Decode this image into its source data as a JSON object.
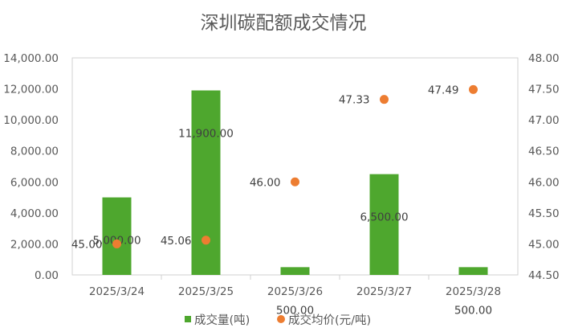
{
  "chart_data": {
    "type": "bar",
    "title": "深圳碳配额成交情况",
    "categories": [
      "2025/3/24",
      "2025/3/25",
      "2025/3/26",
      "2025/3/27",
      "2025/3/28"
    ],
    "series": [
      {
        "name": "成交量(吨)",
        "type": "bar",
        "axis": "left",
        "color": "#4ea72e",
        "values": [
          5000,
          11900,
          500,
          6500,
          500
        ],
        "labels": [
          "5,000.00",
          "11,900.00",
          "500.00",
          "6,500.00",
          "500.00"
        ]
      },
      {
        "name": "成交均价(元/吨)",
        "type": "scatter",
        "axis": "right",
        "color": "#ed7d31",
        "values": [
          45.0,
          45.06,
          46.0,
          47.33,
          47.49
        ],
        "labels": [
          "45.00",
          "45.06",
          "46.00",
          "47.33",
          "47.49"
        ]
      }
    ],
    "y_left": {
      "range": [
        0,
        14000
      ],
      "ticks": [
        "0.00",
        "2,000.00",
        "4,000.00",
        "6,000.00",
        "8,000.00",
        "10,000.00",
        "12,000.00",
        "14,000.00"
      ]
    },
    "y_right": {
      "range": [
        44.5,
        48.0
      ],
      "ticks": [
        "44.50",
        "45.00",
        "45.50",
        "46.00",
        "46.50",
        "47.00",
        "47.50",
        "48.00"
      ]
    },
    "grid": false,
    "legend": "bottom"
  }
}
